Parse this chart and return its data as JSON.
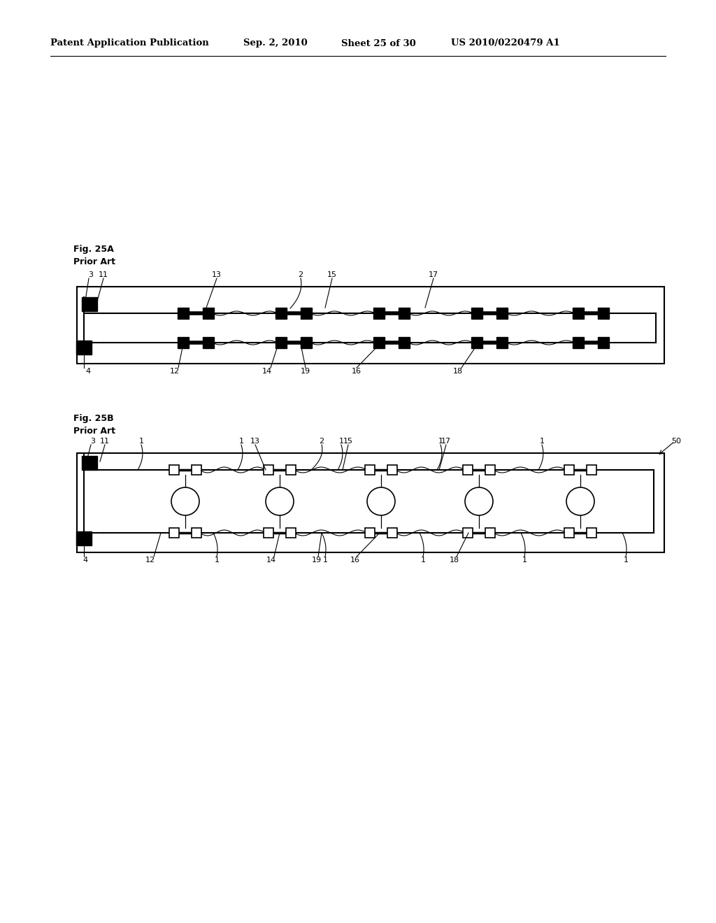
{
  "bg_color": "#ffffff",
  "header_text": "Patent Application Publication",
  "header_date": "Sep. 2, 2010",
  "header_sheet": "Sheet 25 of 30",
  "header_patent": "US 2010/0220479 A1",
  "fig25A_label": "Fig. 25A",
  "fig25A_sublabel": "Prior Art",
  "fig25B_label": "Fig. 25B",
  "fig25B_sublabel": "Prior Art",
  "black": "#000000",
  "white": "#ffffff"
}
